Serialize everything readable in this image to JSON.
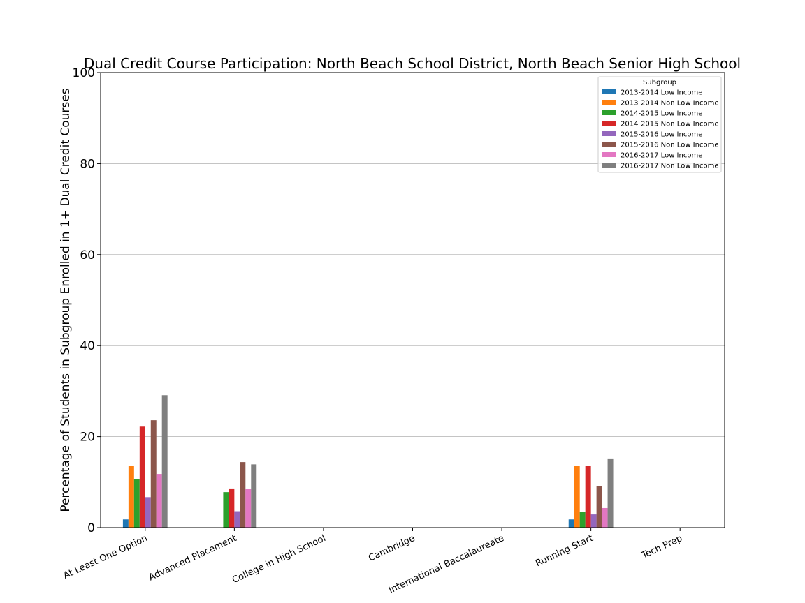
{
  "chart_data": {
    "type": "bar",
    "title": "Dual Credit Course Participation: North Beach School District, North Beach Senior High School",
    "xlabel": "",
    "ylabel": "Percentage of Students in Subgroup Enrolled in 1+ Dual Credit Courses",
    "ylim": [
      0,
      100
    ],
    "yticks": [
      "0",
      "20",
      "40",
      "60",
      "80",
      "100"
    ],
    "grid": "y",
    "legend_title": "Subgroup",
    "legend_position": "top-right",
    "categories": [
      "At Least One Option",
      "Advanced Placement",
      "College in High School",
      "Cambridge",
      "International Baccalaureate",
      "Running Start",
      "Tech Prep"
    ],
    "series": [
      {
        "name": "2013-2014 Low Income",
        "color": "#1f77b4",
        "values": [
          1.8,
          0,
          0,
          0,
          0,
          1.8,
          0
        ]
      },
      {
        "name": "2013-2014 Non Low Income",
        "color": "#ff7f0e",
        "values": [
          13.6,
          0,
          0,
          0,
          0,
          13.6,
          0
        ]
      },
      {
        "name": "2014-2015 Low Income",
        "color": "#2ca02c",
        "values": [
          10.7,
          7.8,
          0,
          0,
          0,
          3.5,
          0
        ]
      },
      {
        "name": "2014-2015 Non Low Income",
        "color": "#d62728",
        "values": [
          22.2,
          8.6,
          0,
          0,
          0,
          13.6,
          0
        ]
      },
      {
        "name": "2015-2016 Low Income",
        "color": "#9467bd",
        "values": [
          6.7,
          3.6,
          0,
          0,
          0,
          2.9,
          0
        ]
      },
      {
        "name": "2015-2016 Non Low Income",
        "color": "#8c564b",
        "values": [
          23.6,
          14.4,
          0,
          0,
          0,
          9.2,
          0
        ]
      },
      {
        "name": "2016-2017 Low Income",
        "color": "#e377c2",
        "values": [
          11.8,
          8.5,
          0,
          0,
          0,
          4.3,
          0
        ]
      },
      {
        "name": "2016-2017 Non Low Income",
        "color": "#7f7f7f",
        "values": [
          29.1,
          13.9,
          0,
          0,
          0,
          15.2,
          0
        ]
      }
    ]
  }
}
